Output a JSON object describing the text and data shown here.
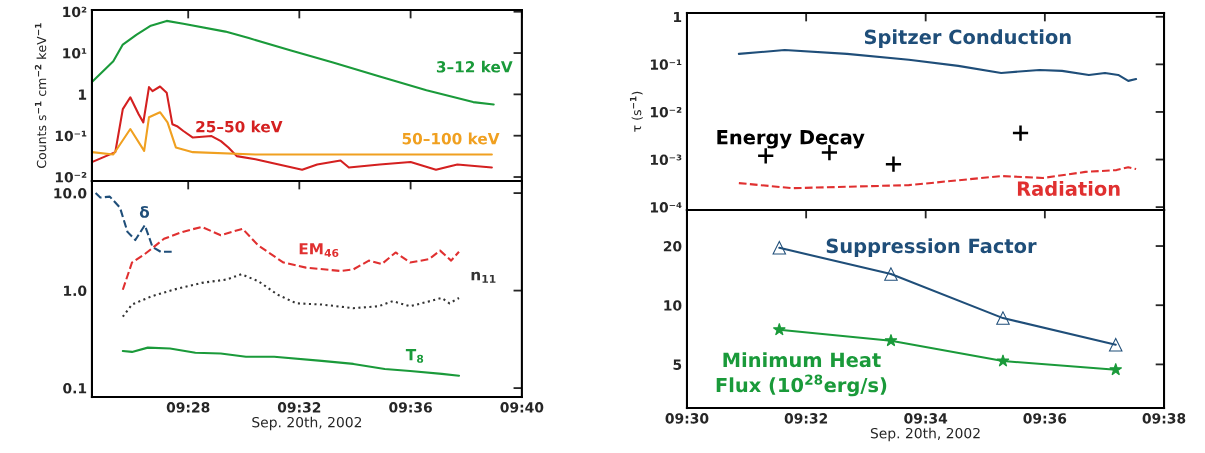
{
  "chart_data": [
    {
      "type": "line",
      "ylabel": "Counts s$^{−1}$ cm$^{−2}$ keV$^{−1}$",
      "log": true,
      "tick_labels": "y",
      "xlim": [
        9.409,
        9.6667
      ],
      "xticks": [
        {
          "value": 9.4667,
          "label": null
        },
        {
          "value": 9.5333,
          "label": null
        },
        {
          "value": 9.6,
          "label": null
        },
        {
          "value": 9.6667,
          "label": null
        }
      ],
      "ylim": [
        0.008,
        110
      ],
      "yticks": [
        {
          "value": 100,
          "label": "10²"
        },
        {
          "value": 10,
          "label": "10¹"
        },
        {
          "value": 1,
          "label": "1"
        },
        {
          "value": 0.1,
          "label": "10⁻¹"
        },
        {
          "value": 0.01,
          "label": "10⁻²"
        }
      ],
      "grid": false,
      "legend": false,
      "series": [
        {
          "name": "3–12 keV",
          "color": "#1a9a3a",
          "x": [
            9.409,
            9.4218,
            9.4275,
            9.4358,
            9.4443,
            9.4538,
            9.4638,
            9.489,
            9.503,
            9.5283,
            9.5535,
            9.5815,
            9.6095,
            9.6375,
            9.6498
          ],
          "values": [
            2,
            6.3,
            16,
            28,
            46,
            60,
            51,
            33,
            23,
            11.5,
            5.9,
            2.7,
            1.25,
            0.65,
            0.57
          ]
        },
        {
          "name": "25–50 keV",
          "color": "#d42020",
          "x": [
            9.409,
            9.423,
            9.4275,
            9.432,
            9.437,
            9.4398,
            9.4432,
            9.4453,
            9.4498,
            9.4538,
            9.4572,
            9.46,
            9.4638,
            9.4695,
            9.4807,
            9.4863,
            9.4908,
            9.4958,
            9.507,
            9.535,
            9.544,
            9.558,
            9.563,
            9.5815,
            9.6,
            9.6152,
            9.628,
            9.6487
          ],
          "values": [
            0.023,
            0.04,
            0.44,
            0.85,
            0.33,
            0.21,
            1.5,
            1.2,
            1.55,
            1.1,
            0.19,
            0.17,
            0.13,
            0.09,
            0.098,
            0.074,
            0.052,
            0.032,
            0.027,
            0.015,
            0.02,
            0.025,
            0.017,
            0.02,
            0.023,
            0.015,
            0.02,
            0.017
          ]
        },
        {
          "name": "50–100 keV",
          "color": "#f0a020",
          "x": [
            9.409,
            9.4218,
            9.432,
            9.4403,
            9.4432,
            9.4498,
            9.4543,
            9.4593,
            9.4695,
            9.507,
            9.563,
            9.6487
          ],
          "values": [
            0.04,
            0.035,
            0.145,
            0.043,
            0.28,
            0.37,
            0.21,
            0.052,
            0.04,
            0.035,
            0.035,
            0.035
          ]
        }
      ]
    },
    {
      "type": "line",
      "xlabel": "Sep. 20th, 2002",
      "log": true,
      "xlim": [
        9.409,
        9.6667
      ],
      "xticks": [
        {
          "value": 9.4667,
          "label": "09:28"
        },
        {
          "value": 9.5333,
          "label": "09:32"
        },
        {
          "value": 9.6,
          "label": "09:36"
        },
        {
          "value": 9.6667,
          "label": "09:40"
        }
      ],
      "ylim": [
        0.081,
        13.3
      ],
      "yticks": [
        {
          "value": 10,
          "label": "10.0"
        },
        {
          "value": 1,
          "label": "1.0"
        },
        {
          "value": 0.1,
          "label": "0.1"
        }
      ],
      "grid": false,
      "legend": false,
      "series": [
        {
          "name": "δ",
          "color": "#1f4e79",
          "line_style": "dashed",
          "x": [
            9.4112,
            9.414,
            9.4197,
            9.423,
            9.4258,
            9.4303,
            9.435,
            9.4407,
            9.4453,
            9.4502,
            9.4587
          ],
          "values": [
            10,
            9,
            9.2,
            8,
            7.1,
            4,
            3.3,
            4.7,
            2.8,
            2.5,
            2.5
          ]
        },
        {
          "name": "EM$_{46}$",
          "color": "#e03030",
          "line_style": "dashed",
          "x": [
            9.4275,
            9.433,
            9.4407,
            9.4522,
            9.4633,
            9.4748,
            9.4862,
            9.4993,
            9.5087,
            9.5238,
            9.5373,
            9.558,
            9.5657,
            9.575,
            9.5827,
            9.591,
            9.5997,
            9.611,
            9.6177,
            9.6243,
            9.629
          ],
          "values": [
            1.02,
            1.94,
            2.37,
            3.4,
            4.0,
            4.5,
            3.7,
            4.3,
            2.9,
            1.94,
            1.72,
            1.59,
            1.65,
            2.03,
            1.87,
            2.46,
            1.94,
            2.1,
            2.57,
            2.03,
            2.5
          ]
        },
        {
          "name": "n$_{11}$",
          "color": "#333333",
          "line_style": "dotted",
          "x": [
            9.4275,
            9.433,
            9.4445,
            9.4577,
            9.4748,
            9.4898,
            9.4985,
            9.5087,
            9.5202,
            9.5315,
            9.5467,
            9.5657,
            9.5807,
            9.5893,
            9.5997,
            9.6187,
            9.6233,
            9.629
          ],
          "values": [
            0.54,
            0.72,
            0.87,
            1.02,
            1.2,
            1.3,
            1.47,
            1.25,
            0.91,
            0.74,
            0.72,
            0.66,
            0.69,
            0.78,
            0.69,
            0.84,
            0.74,
            0.84
          ]
        },
        {
          "name": "T$_{8}$",
          "color": "#1a9a3a",
          "line_style": "solid",
          "x": [
            9.4275,
            9.433,
            9.4425,
            9.4558,
            9.471,
            9.4862,
            9.5013,
            9.5182,
            9.5467,
            9.5657,
            9.5845,
            9.5997,
            9.6187,
            9.629
          ],
          "values": [
            0.24,
            0.235,
            0.26,
            0.255,
            0.23,
            0.226,
            0.21,
            0.21,
            0.19,
            0.177,
            0.157,
            0.15,
            0.14,
            0.134
          ]
        }
      ]
    },
    {
      "type": "line",
      "ylabel": "τ (s$^{−1}$)",
      "log": true,
      "tick_labels": "y",
      "xlim": [
        9.5,
        9.6333
      ],
      "xticks": [
        {
          "value": 9.5,
          "label": null
        },
        {
          "value": 9.5333,
          "label": null
        },
        {
          "value": 9.5667,
          "label": null
        },
        {
          "value": 9.6,
          "label": null
        },
        {
          "value": 9.6333,
          "label": null
        }
      ],
      "ylim": [
        8.7e-05,
        1.2
      ],
      "yticks": [
        {
          "value": 1,
          "label": "1"
        },
        {
          "value": 0.1,
          "label": "10⁻¹"
        },
        {
          "value": 0.01,
          "label": "10⁻²"
        },
        {
          "value": 0.001,
          "label": "10⁻³"
        },
        {
          "value": 0.0001,
          "label": "10⁻⁴"
        }
      ],
      "grid": false,
      "legend": false,
      "series": [
        {
          "name": "Spitzer Conduction",
          "color": "#1f4e79",
          "line_style": "solid",
          "x": [
            9.5145,
            9.5273,
            9.5447,
            9.562,
            9.5758,
            9.5878,
            9.5985,
            9.6048,
            9.6123,
            9.6168,
            9.6205,
            9.6233,
            9.6255
          ],
          "values": [
            0.166,
            0.2,
            0.166,
            0.125,
            0.093,
            0.066,
            0.076,
            0.073,
            0.06,
            0.066,
            0.06,
            0.045,
            0.049
          ]
        },
        {
          "name": "Energy Decay",
          "type": "scatter",
          "marker": "cross",
          "color": "#000000",
          "x": [
            9.522,
            9.5398,
            9.5577,
            9.5932
          ],
          "values": [
            0.0012,
            0.0014,
            0.0008,
            0.0036
          ]
        },
        {
          "name": "Radiation",
          "color": "#e03030",
          "line_style": "dashed",
          "x": [
            9.5145,
            9.5295,
            9.562,
            9.5878,
            9.5995,
            9.6113,
            9.62,
            9.6233,
            9.6255
          ],
          "values": [
            0.00032,
            0.00025,
            0.00029,
            0.00045,
            0.00041,
            0.00055,
            0.0006,
            0.00069,
            0.00063
          ]
        }
      ]
    },
    {
      "type": "line",
      "xlabel": "Sep. 20th, 2002",
      "log": true,
      "xlim": [
        9.5,
        9.6333
      ],
      "xticks": [
        {
          "value": 9.5,
          "label": "09:30"
        },
        {
          "value": 9.5333,
          "label": "09:32"
        },
        {
          "value": 9.5667,
          "label": "09:34"
        },
        {
          "value": 9.6,
          "label": "09:36"
        },
        {
          "value": 9.6333,
          "label": "09:38"
        }
      ],
      "ylim": [
        3,
        30.5
      ],
      "yticks": [
        5,
        10,
        20
      ],
      "grid": false,
      "legend": false,
      "series": [
        {
          "name": "Suppression Factor",
          "color": "#1f4e79",
          "marker": "triangle",
          "line_style": "solid",
          "x": [
            9.5258,
            9.557,
            9.5883,
            9.6198
          ],
          "values": [
            19.6,
            14.4,
            8.6,
            6.3
          ]
        },
        {
          "name": "Minimum Heat\nFlux (10$^{28}$erg/s)",
          "color": "#1a9a3a",
          "marker": "star",
          "line_style": "solid",
          "x": [
            9.5258,
            9.557,
            9.5883,
            9.6198
          ],
          "values": [
            7.5,
            6.6,
            5.2,
            4.7
          ]
        }
      ]
    }
  ]
}
